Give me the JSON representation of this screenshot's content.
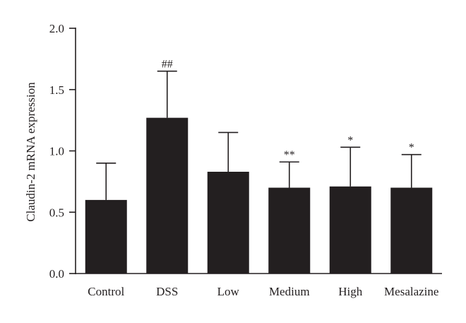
{
  "chart_data": {
    "type": "bar",
    "title": "",
    "xlabel": "",
    "ylabel": "Claudin-2 mRNA expression",
    "categories": [
      "Control",
      "DSS",
      "Low",
      "Medium",
      "High",
      "Mesalazine"
    ],
    "values": [
      0.6,
      1.27,
      0.83,
      0.7,
      0.71,
      0.7
    ],
    "errors": [
      0.3,
      0.38,
      0.32,
      0.21,
      0.32,
      0.27
    ],
    "annotations": [
      "",
      "##",
      "",
      "**",
      "*",
      "*"
    ],
    "ylim": [
      0,
      2.0
    ],
    "yticks": [
      0.0,
      0.5,
      1.0,
      1.5,
      2.0
    ],
    "ytick_labels": [
      "0.0",
      "0.5",
      "1.0",
      "1.5",
      "2.0"
    ],
    "grid": false,
    "bar_color": "#231f20"
  }
}
